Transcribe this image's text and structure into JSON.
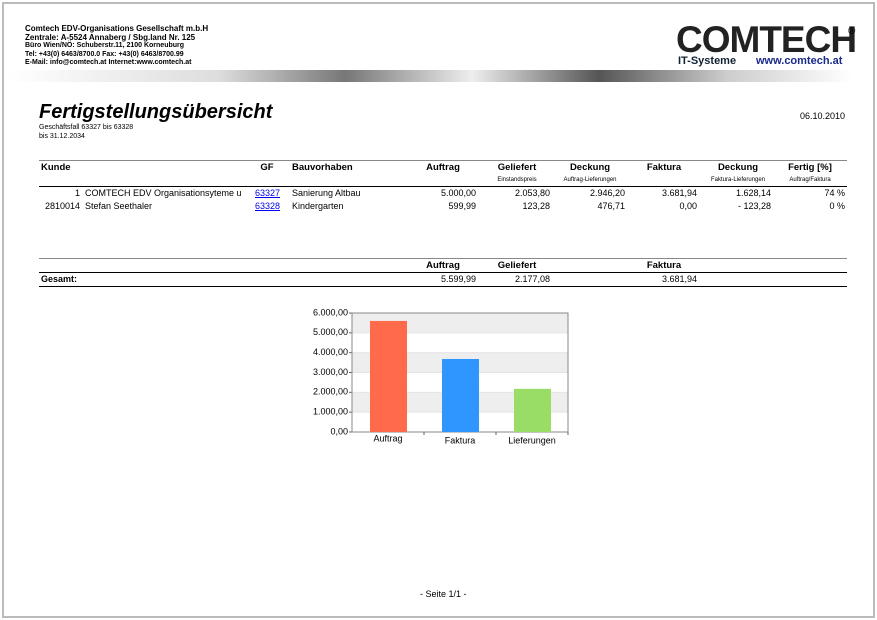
{
  "header": {
    "company": [
      "Comtech EDV-Organisations Gesellschaft m.b.H",
      "Zentrale:  A-5524 Annaberg  /  Sbg.land Nr. 125",
      "Büro Wien/NÖ: Schuberstr.11, 2100 Korneuburg",
      "Tel: +43(0) 6463/8700.0        Fax: +43(0) 6463/8700.99",
      "E-Mail: info@comtech.at       Internet:www.comtech.at"
    ],
    "logo": "COMTECH",
    "tagline": "IT-Systeme",
    "website": "www.comtech.at"
  },
  "report": {
    "title": "Fertigstellungsübersicht",
    "date": "06.10.2010",
    "subtitle": [
      "Geschäftsfall 63327 bis 63328",
      "bis 31.12.2034"
    ]
  },
  "table": {
    "columns": [
      {
        "label": "Kunde"
      },
      {
        "label": "GF"
      },
      {
        "label": "Bauvorhaben"
      },
      {
        "label": "Auftrag"
      },
      {
        "label": "Geliefert",
        "sub": "Einstandspreis"
      },
      {
        "label": "Deckung",
        "sub": "Auftrag-Lieferungen"
      },
      {
        "label": "Faktura"
      },
      {
        "label": "Deckung",
        "sub": "Faktura-Lieferungen"
      },
      {
        "label": "Fertig [%]",
        "sub": "Auftrag/Faktura"
      }
    ],
    "rows": [
      [
        "1",
        "COMTECH EDV Organisationsyteme u",
        "63327",
        "Sanierung Altbau",
        "5.000,00",
        "2.053,80",
        "2.946,20",
        "3.681,94",
        "1.628,14",
        "74 %"
      ],
      [
        "2810014",
        "Stefan Seethaler",
        "63328",
        "Kindergarten",
        "599,99",
        "123,28",
        "476,71",
        "0,00",
        "- 123,28",
        "0 %"
      ]
    ]
  },
  "totals": {
    "columns": [
      "Auftrag",
      "Geliefert",
      "Faktura"
    ],
    "label": "Gesamt:",
    "values": [
      "5.599,99",
      "2.177,08",
      "3.681,94"
    ]
  },
  "chart_data": {
    "type": "bar",
    "categories": [
      "Auftrag",
      "Faktura",
      "Lieferungen"
    ],
    "values": [
      5599.99,
      3681.94,
      2177.08
    ],
    "colors": [
      "#ff6a4a",
      "#2f95ff",
      "#99dd66"
    ],
    "ylim": [
      0,
      6000
    ],
    "yticks": [
      {
        "value": 0,
        "label": "0,00"
      },
      {
        "value": 1000,
        "label": "1.000,00"
      },
      {
        "value": 2000,
        "label": "2.000,00"
      },
      {
        "value": 3000,
        "label": "3.000,00"
      },
      {
        "value": 4000,
        "label": "4.000,00"
      },
      {
        "value": 5000,
        "label": "5.000,00"
      },
      {
        "value": 6000,
        "label": "6.000,00"
      }
    ],
    "grid": true
  },
  "footer": "- Seite 1/1 -"
}
